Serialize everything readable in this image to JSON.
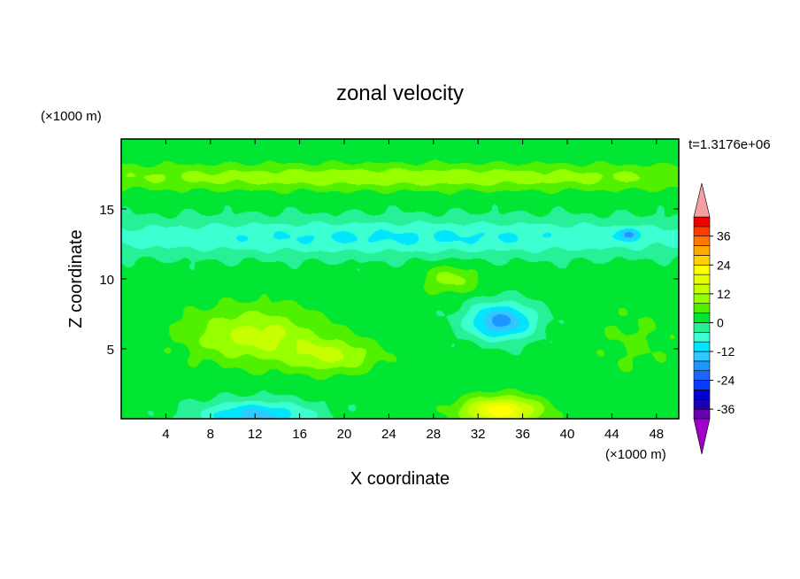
{
  "chart_data": {
    "type": "heatmap",
    "title": "zonal velocity",
    "xlabel": "X coordinate",
    "ylabel": "Z coordinate",
    "x_unit": "(×1000 m)",
    "y_unit": "(×1000 m)",
    "time_label": "t=1.3176e+06",
    "xlim": [
      0,
      50
    ],
    "ylim": [
      0,
      20
    ],
    "x_ticks": [
      4,
      8,
      12,
      16,
      20,
      24,
      28,
      32,
      36,
      40,
      44,
      48
    ],
    "y_ticks": [
      5,
      10,
      15
    ],
    "colorbar": {
      "levels_min": -40,
      "level_step": 4,
      "tick_values": [
        36,
        24,
        12,
        0,
        -12,
        -24,
        -36
      ],
      "extend": "both",
      "colors": [
        "#a000c8",
        "#6a00b4",
        "#1e00b4",
        "#0000d2",
        "#0a3cff",
        "#1e64ff",
        "#1e96ff",
        "#32c8ff",
        "#00e6ff",
        "#3cffd2",
        "#28f096",
        "#00e632",
        "#50f000",
        "#96ff00",
        "#c8ff00",
        "#e6ff00",
        "#ffff00",
        "#ffd200",
        "#ffaa00",
        "#ff7800",
        "#ff3c00",
        "#f00000",
        "#f5a0a0"
      ]
    },
    "field_blobs": [
      {
        "x": 25,
        "z": 17.3,
        "sx": 40,
        "sz": 0.9,
        "v": 9
      },
      {
        "x": 25,
        "z": 13.0,
        "sx": 40,
        "sz": 1.3,
        "v": -10
      },
      {
        "x": 12,
        "z": 6.0,
        "sx": 6,
        "sz": 2.0,
        "v": 12
      },
      {
        "x": 19,
        "z": 4.5,
        "sx": 4,
        "sz": 1.2,
        "v": 10
      },
      {
        "x": 34,
        "z": 7.0,
        "sx": 3,
        "sz": 1.3,
        "v": -19
      },
      {
        "x": 34,
        "z": 0.6,
        "sx": 3.5,
        "sz": 1.0,
        "v": 21
      },
      {
        "x": 12,
        "z": 0.3,
        "sx": 5,
        "sz": 1.0,
        "v": -15
      },
      {
        "x": 46,
        "z": 5.5,
        "sx": 4,
        "sz": 3.0,
        "v": 3
      },
      {
        "x": 29.5,
        "z": 10.0,
        "sx": 2.5,
        "sz": 1.0,
        "v": 8
      },
      {
        "x": 45.5,
        "z": 13.2,
        "sx": 0.8,
        "sz": 0.4,
        "v": -14
      }
    ]
  }
}
